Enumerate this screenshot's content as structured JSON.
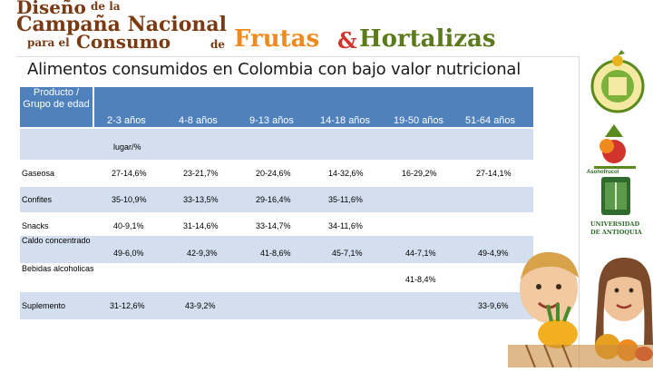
{
  "banner": {
    "line1_a": "Diseño",
    "line1_b": "de la",
    "line2": "Campaña Nacional",
    "line3_a": "para el",
    "line3_b": "Consumo",
    "line3_c": "de",
    "frutas": "Frutas",
    "amp": "&",
    "hortalizas": "Hortalizas"
  },
  "title": "Alimentos consumidos en Colombia con bajo valor nutricional",
  "table": {
    "first_header": "Producto / Grupo de edad",
    "age_headers": [
      "2-3 años",
      "4-8 años",
      "9-13 años",
      "14-18 años",
      "19-50 años",
      "51-64 años"
    ],
    "unit_label": "lugar/%",
    "rows": [
      {
        "label": "Gaseosa",
        "values": [
          "27-14,6%",
          "23-21,7%",
          "20-24,6%",
          "14-32,6%",
          "16-29,2%",
          "27-14,1%"
        ]
      },
      {
        "label": "Confites",
        "values": [
          "35-10,9%",
          "33-13,5%",
          "29-16,4%",
          "35-11,6%",
          "",
          ""
        ]
      },
      {
        "label": "Snacks",
        "values": [
          "40-9,1%",
          "31-14,6%",
          "33-14,7%",
          "34-11,6%",
          "",
          ""
        ]
      },
      {
        "label": "Caldo concentrado",
        "values": [
          "49-6,0%",
          "42-9,3%",
          "41-8,6%",
          "45-7,1%",
          "44-7,1%",
          "49-4,9%"
        ]
      },
      {
        "label": "Bebidas alcoholicas",
        "values": [
          "",
          "",
          "",
          "",
          "41-8,4%",
          ""
        ]
      },
      {
        "label": "Suplemento",
        "values": [
          "31-12,6%",
          "43-9,2%",
          "",
          "",
          "",
          "33-9,6%"
        ]
      }
    ]
  },
  "logos": {
    "logo2_text": "Asohofrucol",
    "logo3_line1": "UNIVERSIDAD",
    "logo3_line2": "DE ANTIOQUIA"
  },
  "colors": {
    "header_blue": "#4f81bd",
    "row_band": "#d3dfee",
    "banner_brown": "#7a3a12",
    "banner_orange": "#f08a1c",
    "banner_green": "#5a7a1c"
  }
}
